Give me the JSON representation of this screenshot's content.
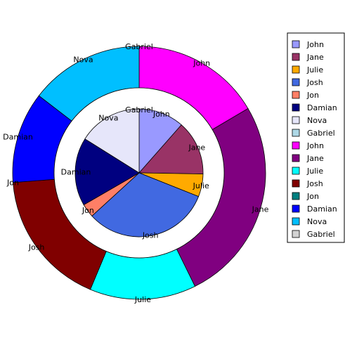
{
  "chart_data": {
    "type": "pie",
    "title": "",
    "inner": {
      "labels": [
        "John",
        "Jane",
        "Julie",
        "Josh",
        "Jon",
        "Damian",
        "Nova",
        "Gabriel"
      ],
      "values": [
        10,
        12,
        5,
        28,
        3,
        15,
        14,
        0
      ],
      "colors": [
        "#9999ff",
        "#993366",
        "#ffaa00",
        "#4169e1",
        "#ff7f66",
        "#000080",
        "#e6e6fa",
        "#add8e6"
      ]
    },
    "outer": {
      "labels": [
        "John",
        "Jane",
        "Julie",
        "Josh",
        "Jon",
        "Damian",
        "Nova",
        "Gabriel"
      ],
      "values": [
        17,
        27,
        14,
        18,
        0,
        12,
        15,
        0
      ],
      "colors": [
        "#ff00ff",
        "#800080",
        "#00ffff",
        "#800000",
        "#008080",
        "#0000ff",
        "#00bfff",
        "#d3d3d3"
      ]
    },
    "legend": {
      "position": "right",
      "entries": [
        {
          "label": "John",
          "color": "#9999ff"
        },
        {
          "label": "Jane",
          "color": "#993366"
        },
        {
          "label": "Julie",
          "color": "#ffaa00"
        },
        {
          "label": "Josh",
          "color": "#4169e1"
        },
        {
          "label": "Jon",
          "color": "#ff7f66"
        },
        {
          "label": "Damian",
          "color": "#000080"
        },
        {
          "label": "Nova",
          "color": "#e6e6fa"
        },
        {
          "label": "Gabriel",
          "color": "#add8e6"
        },
        {
          "label": "John",
          "color": "#ff00ff"
        },
        {
          "label": "Jane",
          "color": "#800080"
        },
        {
          "label": "Julie",
          "color": "#00ffff"
        },
        {
          "label": "Josh",
          "color": "#800000"
        },
        {
          "label": "Jon",
          "color": "#008080"
        },
        {
          "label": "Damian",
          "color": "#0000ff"
        },
        {
          "label": "Nova",
          "color": "#00bfff"
        },
        {
          "label": "Gabriel",
          "color": "#d3d3d3"
        }
      ]
    }
  }
}
